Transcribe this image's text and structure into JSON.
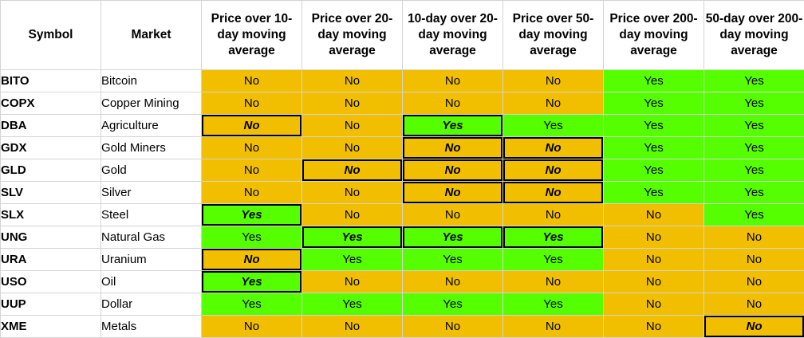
{
  "headers": [
    "Symbol",
    "Market",
    "Price over 10-day moving average",
    "Price over 20-day moving average",
    "10-day over 20-day moving average",
    "Price over 50-day moving average",
    "Price over 200-day moving average",
    "50-day over 200-day moving average"
  ],
  "rows": [
    {
      "symbol": "BITO",
      "market": "Bitcoin",
      "values": [
        "No",
        "No",
        "No",
        "No",
        "Yes",
        "Yes"
      ],
      "highlighted": [
        false,
        false,
        false,
        false,
        false,
        false
      ]
    },
    {
      "symbol": "COPX",
      "market": "Copper Mining",
      "values": [
        "No",
        "No",
        "No",
        "No",
        "Yes",
        "Yes"
      ],
      "highlighted": [
        false,
        false,
        false,
        false,
        false,
        false
      ]
    },
    {
      "symbol": "DBA",
      "market": "Agriculture",
      "values": [
        "No",
        "No",
        "Yes",
        "Yes",
        "Yes",
        "Yes"
      ],
      "highlighted": [
        true,
        false,
        true,
        false,
        false,
        false
      ]
    },
    {
      "symbol": "GDX",
      "market": "Gold Miners",
      "values": [
        "No",
        "No",
        "No",
        "No",
        "Yes",
        "Yes"
      ],
      "highlighted": [
        false,
        false,
        true,
        true,
        false,
        false
      ]
    },
    {
      "symbol": "GLD",
      "market": "Gold",
      "values": [
        "No",
        "No",
        "No",
        "No",
        "Yes",
        "Yes"
      ],
      "highlighted": [
        false,
        true,
        true,
        true,
        false,
        false
      ]
    },
    {
      "symbol": "SLV",
      "market": "Silver",
      "values": [
        "No",
        "No",
        "No",
        "No",
        "Yes",
        "Yes"
      ],
      "highlighted": [
        false,
        false,
        true,
        true,
        false,
        false
      ]
    },
    {
      "symbol": "SLX",
      "market": "Steel",
      "values": [
        "Yes",
        "No",
        "No",
        "No",
        "No",
        "Yes"
      ],
      "highlighted": [
        true,
        false,
        false,
        false,
        false,
        false
      ]
    },
    {
      "symbol": "UNG",
      "market": "Natural Gas",
      "values": [
        "Yes",
        "Yes",
        "Yes",
        "Yes",
        "No",
        "No"
      ],
      "highlighted": [
        false,
        true,
        true,
        true,
        false,
        false
      ]
    },
    {
      "symbol": "URA",
      "market": "Uranium",
      "values": [
        "No",
        "Yes",
        "Yes",
        "Yes",
        "No",
        "No"
      ],
      "highlighted": [
        true,
        false,
        false,
        false,
        false,
        false
      ]
    },
    {
      "symbol": "USO",
      "market": "Oil",
      "values": [
        "Yes",
        "No",
        "No",
        "No",
        "No",
        "No"
      ],
      "highlighted": [
        true,
        false,
        false,
        false,
        false,
        false
      ]
    },
    {
      "symbol": "UUP",
      "market": "Dollar",
      "values": [
        "Yes",
        "Yes",
        "Yes",
        "Yes",
        "No",
        "No"
      ],
      "highlighted": [
        false,
        false,
        false,
        false,
        false,
        false
      ]
    },
    {
      "symbol": "XME",
      "market": "Metals",
      "values": [
        "No",
        "No",
        "No",
        "No",
        "No",
        "No"
      ],
      "highlighted": [
        false,
        false,
        false,
        false,
        false,
        true
      ]
    }
  ],
  "colors": {
    "yes": "#55ff00",
    "no": "#f1bf00",
    "highlight_border": "#000000",
    "gridline": "#d4d4d4"
  }
}
